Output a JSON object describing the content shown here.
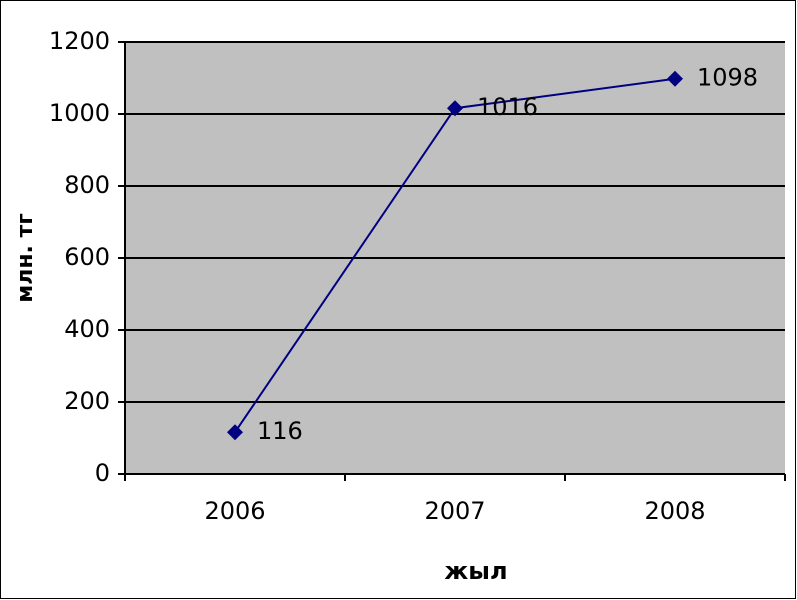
{
  "chart_data": {
    "type": "line",
    "x_label": "жыл",
    "y_label": "млн. тг",
    "categories": [
      "2006",
      "2007",
      "2008"
    ],
    "series": [
      {
        "name": "млн. тг",
        "color": "#000080",
        "values": [
          116,
          1016,
          1098
        ]
      }
    ],
    "ylim": [
      0,
      1200
    ],
    "yticks": [
      0,
      200,
      400,
      600,
      800,
      1000,
      1200
    ],
    "grid": true,
    "data_labels": true
  }
}
